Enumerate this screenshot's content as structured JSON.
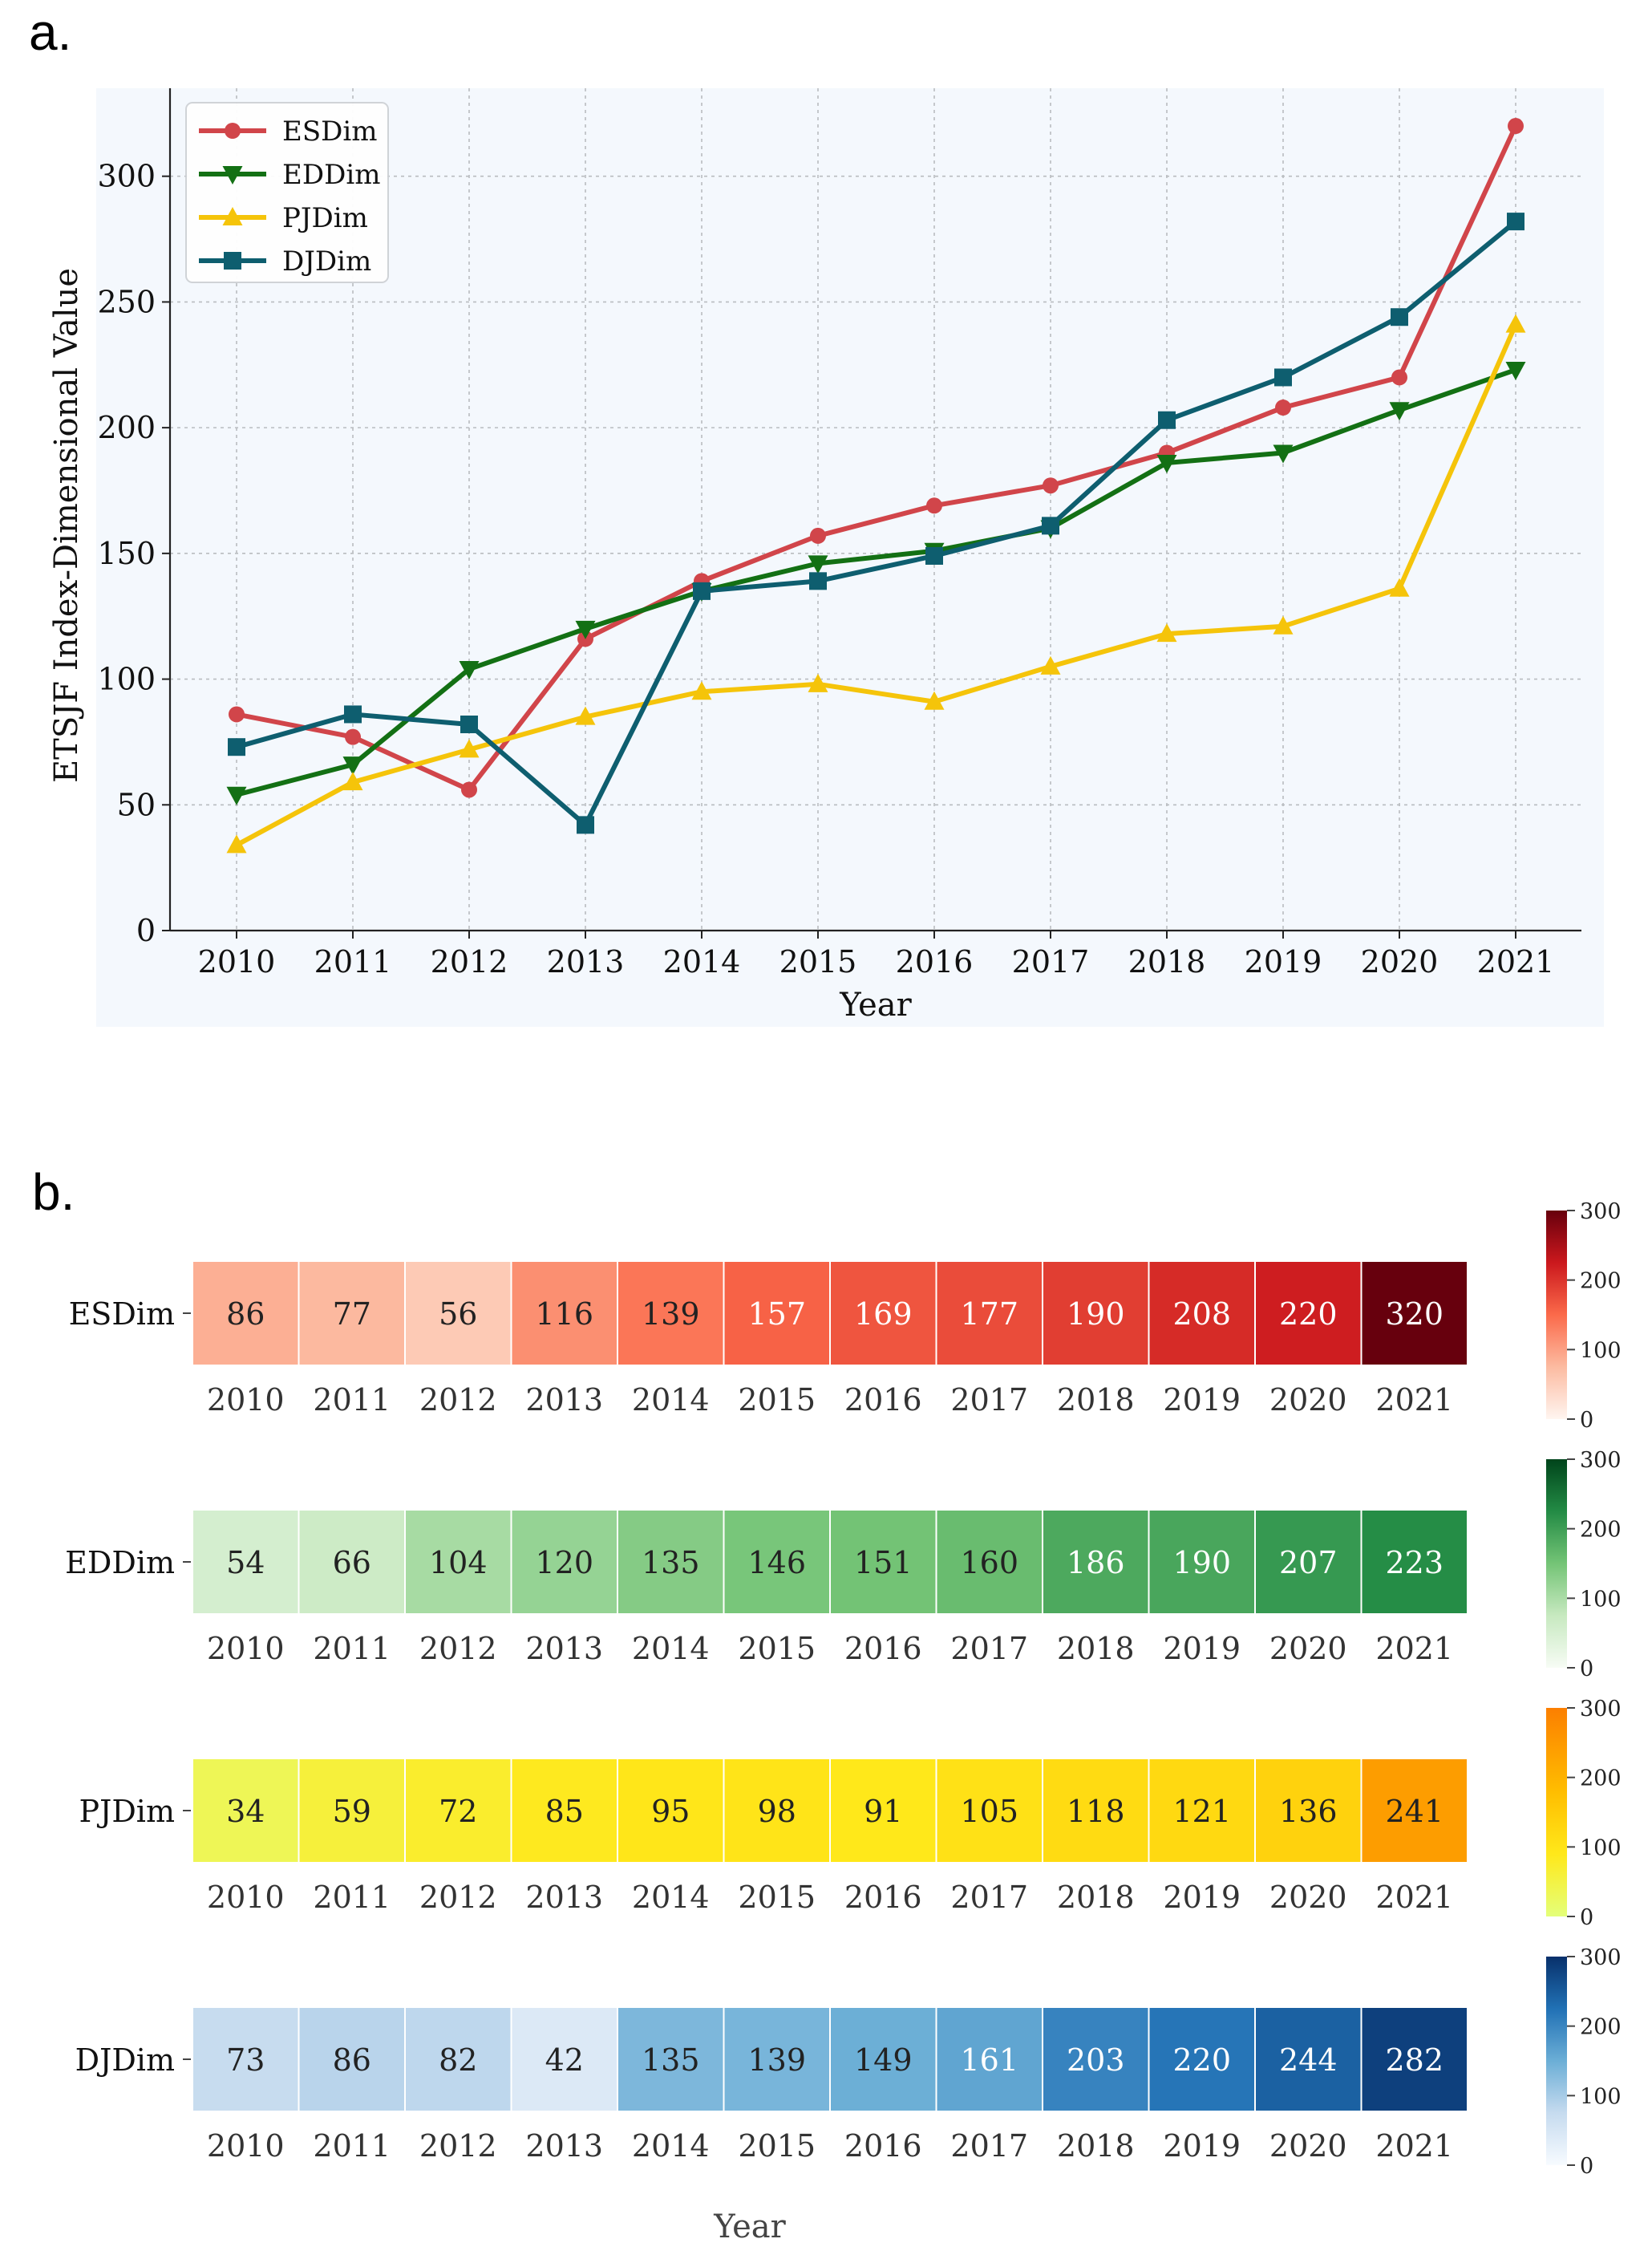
{
  "panel_a": {
    "label": "a."
  },
  "panel_b": {
    "label": "b."
  },
  "colors": {
    "ESDim": "#d1454a",
    "EDDim": "#137014",
    "PJDim": "#f5c40a",
    "DJDim": "#0e5e6f",
    "plot_bg": "#f4f8fd",
    "grid": "#b9bcc0"
  },
  "chart_data": [
    {
      "type": "line",
      "title": "",
      "xlabel": "Year",
      "ylabel": "ETSJF Index-Dimensional Value",
      "x": [
        2010,
        2011,
        2012,
        2013,
        2014,
        2015,
        2016,
        2017,
        2018,
        2019,
        2020,
        2021
      ],
      "ylim": [
        0,
        335
      ],
      "yticks": [
        0,
        50,
        100,
        150,
        200,
        250,
        300
      ],
      "grid": true,
      "legend_position": "top-left",
      "series": [
        {
          "name": "ESDim",
          "marker": "circle",
          "values": [
            86,
            77,
            56,
            116,
            139,
            157,
            169,
            177,
            190,
            208,
            220,
            320
          ]
        },
        {
          "name": "EDDim",
          "marker": "triangle-down",
          "values": [
            54,
            66,
            104,
            120,
            135,
            146,
            151,
            160,
            186,
            190,
            207,
            223
          ]
        },
        {
          "name": "PJDim",
          "marker": "triangle-up",
          "values": [
            34,
            59,
            72,
            85,
            95,
            98,
            91,
            105,
            118,
            121,
            136,
            241
          ]
        },
        {
          "name": "DJDim",
          "marker": "square",
          "values": [
            73,
            86,
            82,
            42,
            135,
            139,
            149,
            161,
            203,
            220,
            244,
            282
          ]
        }
      ]
    },
    {
      "type": "heatmap",
      "title": "",
      "xlabel": "Year",
      "x": [
        2010,
        2011,
        2012,
        2013,
        2014,
        2015,
        2016,
        2017,
        2018,
        2019,
        2020,
        2021
      ],
      "colorbar_range": [
        0,
        300
      ],
      "colorbar_ticks": [
        0,
        100,
        200,
        300
      ],
      "rows": [
        {
          "name": "ESDim",
          "colormap": "Reds",
          "values": [
            86,
            77,
            56,
            116,
            139,
            157,
            169,
            177,
            190,
            208,
            220,
            320
          ]
        },
        {
          "name": "EDDim",
          "colormap": "Greens",
          "values": [
            54,
            66,
            104,
            120,
            135,
            146,
            151,
            160,
            186,
            190,
            207,
            223
          ]
        },
        {
          "name": "PJDim",
          "colormap": "Wistia",
          "values": [
            34,
            59,
            72,
            85,
            95,
            98,
            91,
            105,
            118,
            121,
            136,
            241
          ]
        },
        {
          "name": "DJDim",
          "colormap": "Blues",
          "values": [
            73,
            86,
            82,
            42,
            135,
            139,
            149,
            161,
            203,
            220,
            244,
            282
          ]
        }
      ]
    }
  ]
}
